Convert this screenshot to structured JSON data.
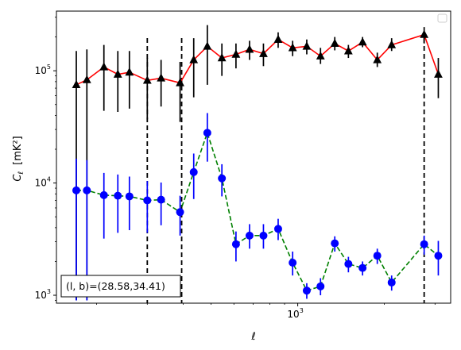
{
  "chart_data": {
    "type": "scatter",
    "xscale": "log",
    "yscale": "log",
    "xlim": [
      145,
      3400
    ],
    "ylim": [
      850,
      340000
    ],
    "xlabel": "ℓ",
    "ylabel_main": "C",
    "ylabel_sub": "ℓ",
    "ylabel_unit": "[mK²]",
    "xticks": [
      {
        "value": 1000,
        "base": "10",
        "exp": "3"
      }
    ],
    "yticks": [
      {
        "value": 1000,
        "base": "10",
        "exp": "3"
      },
      {
        "value": 10000,
        "base": "10",
        "exp": "4"
      },
      {
        "value": 100000,
        "base": "10",
        "exp": "5"
      }
    ],
    "vlines": [
      300,
      395,
      2750
    ],
    "annotation": "(l, b)=(28.58,34.41)",
    "legend": {
      "location": "upper right",
      "entries": []
    },
    "series": [
      {
        "marker": "triangle",
        "marker_color": "#000000",
        "line_color": "#ff0000",
        "line_style": "solid",
        "points": [
          {
            "x": 170,
            "y": 75000,
            "lo": 900,
            "hi": 150000
          },
          {
            "x": 185,
            "y": 83000,
            "lo": 900,
            "hi": 155000
          },
          {
            "x": 212,
            "y": 108000,
            "lo": 44000,
            "hi": 170000
          },
          {
            "x": 237,
            "y": 93000,
            "lo": 43000,
            "hi": 150000
          },
          {
            "x": 260,
            "y": 97000,
            "lo": 46000,
            "hi": 150000
          },
          {
            "x": 300,
            "y": 82000,
            "lo": 37000,
            "hi": 130000
          },
          {
            "x": 335,
            "y": 86000,
            "lo": 48000,
            "hi": 125000
          },
          {
            "x": 390,
            "y": 78000,
            "lo": 35000,
            "hi": 120000
          },
          {
            "x": 435,
            "y": 125000,
            "lo": 58000,
            "hi": 195000
          },
          {
            "x": 485,
            "y": 165000,
            "lo": 75000,
            "hi": 255000
          },
          {
            "x": 545,
            "y": 130000,
            "lo": 90000,
            "hi": 175000
          },
          {
            "x": 610,
            "y": 140000,
            "lo": 105000,
            "hi": 175000
          },
          {
            "x": 680,
            "y": 155000,
            "lo": 125000,
            "hi": 185000
          },
          {
            "x": 760,
            "y": 142000,
            "lo": 110000,
            "hi": 175000
          },
          {
            "x": 855,
            "y": 190000,
            "lo": 160000,
            "hi": 220000
          },
          {
            "x": 960,
            "y": 160000,
            "lo": 135000,
            "hi": 185000
          },
          {
            "x": 1075,
            "y": 165000,
            "lo": 140000,
            "hi": 190000
          },
          {
            "x": 1200,
            "y": 135000,
            "lo": 115000,
            "hi": 160000
          },
          {
            "x": 1345,
            "y": 175000,
            "lo": 152000,
            "hi": 200000
          },
          {
            "x": 1500,
            "y": 150000,
            "lo": 130000,
            "hi": 170000
          },
          {
            "x": 1680,
            "y": 180000,
            "lo": 162000,
            "hi": 200000
          },
          {
            "x": 1890,
            "y": 125000,
            "lo": 108000,
            "hi": 145000
          },
          {
            "x": 2120,
            "y": 170000,
            "lo": 150000,
            "hi": 195000
          },
          {
            "x": 2750,
            "y": 210000,
            "lo": 175000,
            "hi": 245000
          },
          {
            "x": 3080,
            "y": 93000,
            "lo": 57000,
            "hi": 130000
          }
        ]
      },
      {
        "marker": "circle",
        "marker_color": "#0000ff",
        "line_color": "#008000",
        "line_style": "dashed",
        "points": [
          {
            "x": 170,
            "y": 8600,
            "lo": 900,
            "hi": 16500
          },
          {
            "x": 185,
            "y": 8600,
            "lo": 900,
            "hi": 16000
          },
          {
            "x": 212,
            "y": 7800,
            "lo": 3200,
            "hi": 12300
          },
          {
            "x": 237,
            "y": 7700,
            "lo": 3600,
            "hi": 11900
          },
          {
            "x": 260,
            "y": 7600,
            "lo": 3800,
            "hi": 11400
          },
          {
            "x": 300,
            "y": 7000,
            "lo": 3600,
            "hi": 10400
          },
          {
            "x": 335,
            "y": 7100,
            "lo": 4200,
            "hi": 10100
          },
          {
            "x": 390,
            "y": 5500,
            "lo": 3400,
            "hi": 7700
          },
          {
            "x": 435,
            "y": 12500,
            "lo": 7200,
            "hi": 18300
          },
          {
            "x": 485,
            "y": 28000,
            "lo": 15500,
            "hi": 42000
          },
          {
            "x": 545,
            "y": 11000,
            "lo": 7600,
            "hi": 14700
          },
          {
            "x": 610,
            "y": 2850,
            "lo": 2000,
            "hi": 3700
          },
          {
            "x": 680,
            "y": 3400,
            "lo": 2600,
            "hi": 4300
          },
          {
            "x": 760,
            "y": 3400,
            "lo": 2600,
            "hi": 4300
          },
          {
            "x": 855,
            "y": 3900,
            "lo": 3100,
            "hi": 4800
          },
          {
            "x": 960,
            "y": 1950,
            "lo": 1500,
            "hi": 2450
          },
          {
            "x": 1075,
            "y": 1100,
            "lo": 930,
            "hi": 1280
          },
          {
            "x": 1200,
            "y": 1200,
            "lo": 1000,
            "hi": 1420
          },
          {
            "x": 1345,
            "y": 2900,
            "lo": 2450,
            "hi": 3350
          },
          {
            "x": 1500,
            "y": 1900,
            "lo": 1600,
            "hi": 2200
          },
          {
            "x": 1680,
            "y": 1750,
            "lo": 1500,
            "hi": 2000
          },
          {
            "x": 1890,
            "y": 2250,
            "lo": 1900,
            "hi": 2600
          },
          {
            "x": 2120,
            "y": 1300,
            "lo": 1100,
            "hi": 1500
          },
          {
            "x": 2750,
            "y": 2850,
            "lo": 2300,
            "hi": 3400
          },
          {
            "x": 3080,
            "y": 2250,
            "lo": 1500,
            "hi": 3050
          }
        ]
      }
    ]
  }
}
